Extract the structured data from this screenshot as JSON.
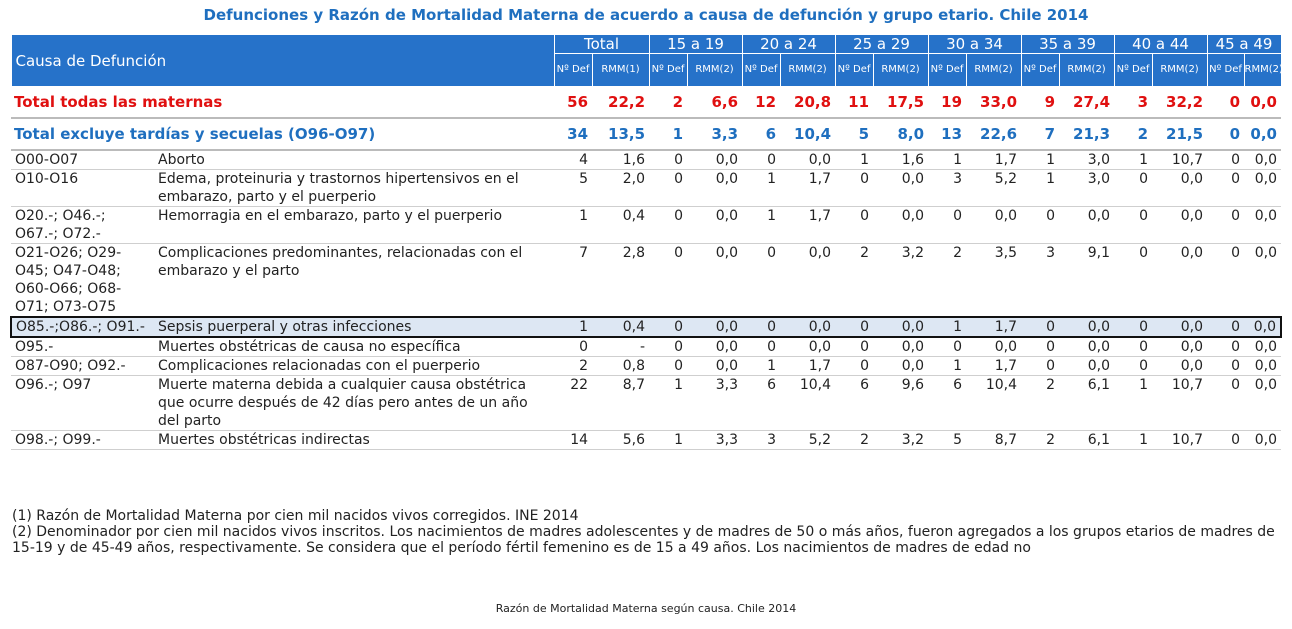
{
  "title": "Defunciones y Razón de Mortalidad Materna de acuerdo a causa de defunción y grupo etario. Chile 2014",
  "header": {
    "cause_label": "Causa de Defunción",
    "groups": [
      "Total",
      "15 a 19",
      "20 a 24",
      "25 a 29",
      "30 a 34",
      "35 a 39",
      "40 a 44",
      "45 a 49"
    ],
    "sub_def": "Nº Def",
    "sub_rmm_total": "RMM(1)",
    "sub_rmm": "RMM(2)"
  },
  "totals": [
    {
      "label": "Total todas las maternas",
      "values": [
        "56",
        "22,2",
        "2",
        "6,6",
        "12",
        "20,8",
        "11",
        "17,5",
        "19",
        "33,0",
        "9",
        "27,4",
        "3",
        "32,2",
        "0",
        "0,0"
      ]
    },
    {
      "label": "Total excluye tardías y secuelas (O96-O97)",
      "values": [
        "34",
        "13,5",
        "1",
        "3,3",
        "6",
        "10,4",
        "5",
        "8,0",
        "13",
        "22,6",
        "7",
        "21,3",
        "2",
        "21,5",
        "0",
        "0,0"
      ]
    }
  ],
  "rows": [
    {
      "code": "O00-O07",
      "cause": "Aborto",
      "values": [
        "4",
        "1,6",
        "0",
        "0,0",
        "0",
        "0,0",
        "1",
        "1,6",
        "1",
        "1,7",
        "1",
        "3,0",
        "1",
        "10,7",
        "0",
        "0,0"
      ]
    },
    {
      "code": "O10-O16",
      "cause": "Edema, proteinuria y trastornos hipertensivos en el embarazo, parto y el puerperio",
      "values": [
        "5",
        "2,0",
        "0",
        "0,0",
        "1",
        "1,7",
        "0",
        "0,0",
        "3",
        "5,2",
        "1",
        "3,0",
        "0",
        "0,0",
        "0",
        "0,0"
      ]
    },
    {
      "code": "O20.-; O46.-; O67.-; O72.-",
      "cause": "Hemorragia en el embarazo, parto y el puerperio",
      "values": [
        "1",
        "0,4",
        "0",
        "0,0",
        "1",
        "1,7",
        "0",
        "0,0",
        "0",
        "0,0",
        "0",
        "0,0",
        "0",
        "0,0",
        "0",
        "0,0"
      ]
    },
    {
      "code": "O21-O26; O29-O45; O47-O48; O60-O66; O68-O71; O73-O75",
      "cause": "Complicaciones predominantes, relacionadas con el embarazo y el parto",
      "values": [
        "7",
        "2,8",
        "0",
        "0,0",
        "0",
        "0,0",
        "2",
        "3,2",
        "2",
        "3,5",
        "3",
        "9,1",
        "0",
        "0,0",
        "0",
        "0,0"
      ]
    },
    {
      "code": "O85.-;O86.-; O91.-",
      "cause": "Sepsis puerperal y otras infecciones",
      "values": [
        "1",
        "0,4",
        "0",
        "0,0",
        "0",
        "0,0",
        "0",
        "0,0",
        "1",
        "1,7",
        "0",
        "0,0",
        "0",
        "0,0",
        "0",
        "0,0"
      ]
    },
    {
      "code": "O95.-",
      "cause": "Muertes obstétricas de causa no específica",
      "values": [
        "0",
        "-",
        "0",
        "0,0",
        "0",
        "0,0",
        "0",
        "0,0",
        "0",
        "0,0",
        "0",
        "0,0",
        "0",
        "0,0",
        "0",
        "0,0"
      ]
    },
    {
      "code": "O87-O90; O92.-",
      "cause": "Complicaciones relacionadas con el puerperio",
      "values": [
        "2",
        "0,8",
        "0",
        "0,0",
        "1",
        "1,7",
        "0",
        "0,0",
        "1",
        "1,7",
        "0",
        "0,0",
        "0",
        "0,0",
        "0",
        "0,0"
      ]
    },
    {
      "code": "O96.-; O97",
      "cause": "Muerte materna debida a cualquier causa obstétrica que ocurre después de 42 días pero antes de un año del parto",
      "values": [
        "22",
        "8,7",
        "1",
        "3,3",
        "6",
        "10,4",
        "6",
        "9,6",
        "6",
        "10,4",
        "2",
        "6,1",
        "1",
        "10,7",
        "0",
        "0,0"
      ]
    },
    {
      "code": "O98.-; O99.-",
      "cause": "Muertes obstétricas indirectas",
      "values": [
        "14",
        "5,6",
        "1",
        "3,3",
        "3",
        "5,2",
        "2",
        "3,2",
        "5",
        "8,7",
        "2",
        "6,1",
        "1",
        "10,7",
        "0",
        "0,0"
      ]
    }
  ],
  "notes": [
    "(1) Razón de Mortalidad Materna por cien mil nacidos vivos corregidos. INE 2014",
    "(2) Denominador por cien mil nacidos vivos inscritos. Los nacimientos de madres adolescentes y de madres de 50 o más años, fueron agregados a los grupos etarios de madres de 15-19 y de 45-49 años, respectivamente. Se considera que el período fértil femenino es de 15 a 49 años. Los nacimientos de madres de edad no"
  ],
  "caption": "Razón de Mortalidad Materna según causa. Chile 2014"
}
